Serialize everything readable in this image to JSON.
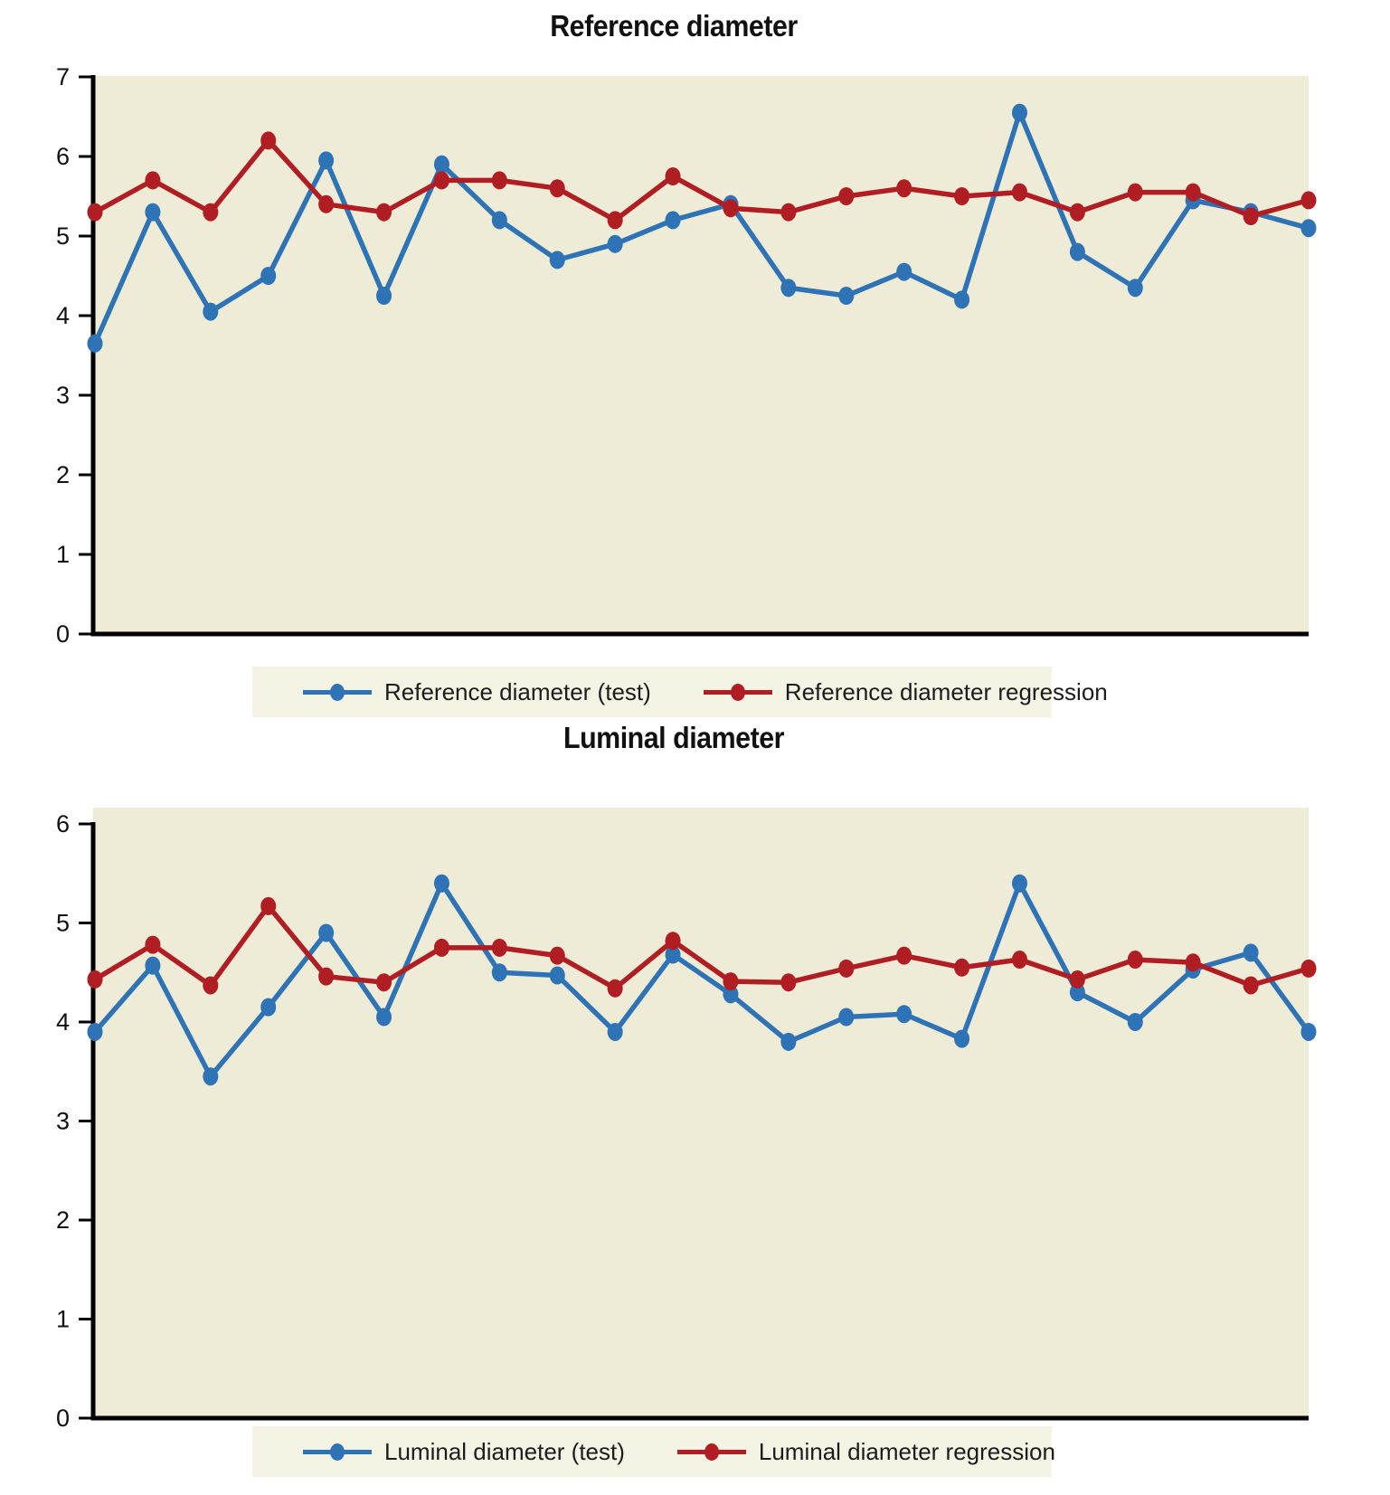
{
  "colors": {
    "test_series": "#2e73b5",
    "regression_series": "#b01e23",
    "plot_background": "#eeebd6",
    "legend_background": "#f5f3e4",
    "axis": "#000000"
  },
  "chart_data": [
    {
      "type": "line",
      "title": "Reference diameter",
      "xlabel": "",
      "ylabel": "",
      "x": [
        1,
        2,
        3,
        4,
        5,
        6,
        7,
        8,
        9,
        10,
        11,
        12,
        13,
        14,
        15,
        16,
        17,
        18,
        19,
        20,
        21,
        22
      ],
      "series": [
        {
          "name": "Reference diameter (test)",
          "color": "#2e73b5",
          "values": [
            3.65,
            5.3,
            4.05,
            4.5,
            5.95,
            4.25,
            5.9,
            5.2,
            4.7,
            4.9,
            5.2,
            5.4,
            4.35,
            4.25,
            4.55,
            4.2,
            6.55,
            4.8,
            4.35,
            5.45,
            5.3,
            5.1
          ]
        },
        {
          "name": "Reference diameter regression",
          "color": "#b01e23",
          "values": [
            5.3,
            5.7,
            5.3,
            6.2,
            5.4,
            5.3,
            5.7,
            5.7,
            5.6,
            5.2,
            5.75,
            5.35,
            5.3,
            5.5,
            5.6,
            5.5,
            5.55,
            5.3,
            5.55,
            5.55,
            5.25,
            5.45
          ]
        }
      ],
      "ylim": [
        0,
        7
      ],
      "y_ticks": [
        "0",
        "1",
        "2",
        "3",
        "4",
        "5",
        "6",
        "7"
      ],
      "grid": false,
      "x_axis_labels_visible": false,
      "legend_position": "bottom"
    },
    {
      "type": "line",
      "title": "Luminal diameter",
      "xlabel": "",
      "ylabel": "",
      "x": [
        1,
        2,
        3,
        4,
        5,
        6,
        7,
        8,
        9,
        10,
        11,
        12,
        13,
        14,
        15,
        16,
        17,
        18,
        19,
        20,
        21,
        22
      ],
      "series": [
        {
          "name": "Luminal diameter (test)",
          "color": "#2e73b5",
          "values": [
            3.9,
            4.57,
            3.45,
            4.15,
            4.9,
            4.05,
            5.4,
            4.5,
            4.47,
            3.9,
            4.68,
            4.28,
            3.8,
            4.05,
            4.08,
            3.83,
            5.4,
            4.3,
            4.0,
            4.53,
            4.7,
            3.9
          ]
        },
        {
          "name": "Luminal diameter regression",
          "color": "#b01e23",
          "values": [
            4.43,
            4.78,
            4.37,
            5.17,
            4.46,
            4.4,
            4.75,
            4.75,
            4.67,
            4.34,
            4.82,
            4.41,
            4.4,
            4.54,
            4.67,
            4.55,
            4.63,
            4.43,
            4.63,
            4.6,
            4.37,
            4.54
          ]
        }
      ],
      "ylim": [
        0,
        6
      ],
      "y_ticks": [
        "0",
        "1",
        "2",
        "3",
        "4",
        "5",
        "6"
      ],
      "grid": false,
      "x_axis_labels_visible": false,
      "legend_position": "bottom"
    }
  ]
}
